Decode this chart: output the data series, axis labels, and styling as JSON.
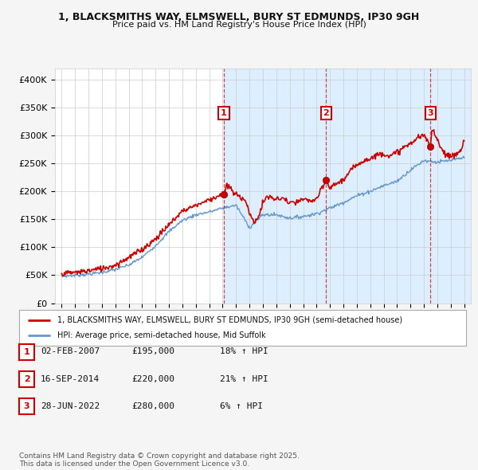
{
  "title": "1, BLACKSMITHS WAY, ELMSWELL, BURY ST EDMUNDS, IP30 9GH",
  "subtitle": "Price paid vs. HM Land Registry's House Price Index (HPI)",
  "ylim": [
    0,
    420000
  ],
  "yticks": [
    0,
    50000,
    100000,
    150000,
    200000,
    250000,
    300000,
    350000,
    400000
  ],
  "ytick_labels": [
    "£0",
    "£50K",
    "£100K",
    "£150K",
    "£200K",
    "£250K",
    "£300K",
    "£350K",
    "£400K"
  ],
  "xlim_start": 1994.5,
  "xlim_end": 2025.5,
  "sale_dates_num": [
    2007.09,
    2014.71,
    2022.49
  ],
  "sale_prices": [
    195000,
    220000,
    280000
  ],
  "sale_labels": [
    "1",
    "2",
    "3"
  ],
  "vline_color": "#cc0000",
  "property_line_color": "#cc0000",
  "hpi_line_color": "#6699cc",
  "shade_color": "#ddeeff",
  "background_color": "#f5f5f5",
  "plot_bg_color": "#ffffff",
  "legend_entry1": "1, BLACKSMITHS WAY, ELMSWELL, BURY ST EDMUNDS, IP30 9GH (semi-detached house)",
  "legend_entry2": "HPI: Average price, semi-detached house, Mid Suffolk",
  "table_data": [
    [
      "1",
      "02-FEB-2007",
      "£195,000",
      "18% ↑ HPI"
    ],
    [
      "2",
      "16-SEP-2014",
      "£220,000",
      "21% ↑ HPI"
    ],
    [
      "3",
      "28-JUN-2022",
      "£280,000",
      "6% ↑ HPI"
    ]
  ],
  "footnote": "Contains HM Land Registry data © Crown copyright and database right 2025.\nThis data is licensed under the Open Government Licence v3.0.",
  "hpi_points": [
    [
      1995,
      48000
    ],
    [
      1996,
      50000
    ],
    [
      1997,
      52000
    ],
    [
      1998,
      55000
    ],
    [
      1999,
      60000
    ],
    [
      2000,
      68000
    ],
    [
      2001,
      82000
    ],
    [
      2002,
      103000
    ],
    [
      2003,
      128000
    ],
    [
      2004,
      148000
    ],
    [
      2005,
      158000
    ],
    [
      2006,
      163000
    ],
    [
      2007,
      170000
    ],
    [
      2008,
      175000
    ],
    [
      2009,
      135000
    ],
    [
      2010,
      158000
    ],
    [
      2011,
      158000
    ],
    [
      2012,
      152000
    ],
    [
      2013,
      155000
    ],
    [
      2014,
      160000
    ],
    [
      2015,
      170000
    ],
    [
      2016,
      180000
    ],
    [
      2017,
      192000
    ],
    [
      2018,
      200000
    ],
    [
      2019,
      210000
    ],
    [
      2020,
      218000
    ],
    [
      2021,
      238000
    ],
    [
      2022,
      255000
    ],
    [
      2023,
      252000
    ],
    [
      2024,
      255000
    ],
    [
      2025,
      260000
    ]
  ],
  "prop_points": [
    [
      1995,
      53000
    ],
    [
      1996,
      55000
    ],
    [
      1997,
      58000
    ],
    [
      1998,
      62000
    ],
    [
      1999,
      68000
    ],
    [
      2000,
      82000
    ],
    [
      2001,
      96000
    ],
    [
      2002,
      115000
    ],
    [
      2003,
      140000
    ],
    [
      2004,
      165000
    ],
    [
      2005,
      175000
    ],
    [
      2006,
      185000
    ],
    [
      2007.0,
      195000
    ],
    [
      2007.09,
      195000
    ],
    [
      2007.3,
      210000
    ],
    [
      2007.6,
      205000
    ],
    [
      2007.9,
      195000
    ],
    [
      2008.3,
      190000
    ],
    [
      2008.7,
      185000
    ],
    [
      2009.0,
      160000
    ],
    [
      2009.3,
      145000
    ],
    [
      2009.7,
      155000
    ],
    [
      2010.0,
      180000
    ],
    [
      2010.3,
      190000
    ],
    [
      2010.7,
      188000
    ],
    [
      2011.0,
      185000
    ],
    [
      2011.5,
      188000
    ],
    [
      2012.0,
      178000
    ],
    [
      2012.5,
      180000
    ],
    [
      2013.0,
      185000
    ],
    [
      2013.5,
      183000
    ],
    [
      2014.0,
      185000
    ],
    [
      2014.71,
      220000
    ],
    [
      2015.0,
      205000
    ],
    [
      2015.5,
      215000
    ],
    [
      2016.0,
      220000
    ],
    [
      2016.5,
      235000
    ],
    [
      2017.0,
      248000
    ],
    [
      2017.5,
      255000
    ],
    [
      2018.0,
      258000
    ],
    [
      2018.5,
      265000
    ],
    [
      2019.0,
      268000
    ],
    [
      2019.5,
      262000
    ],
    [
      2020.0,
      270000
    ],
    [
      2020.5,
      278000
    ],
    [
      2021.0,
      285000
    ],
    [
      2021.5,
      295000
    ],
    [
      2022.0,
      300000
    ],
    [
      2022.49,
      280000
    ],
    [
      2022.6,
      310000
    ],
    [
      2022.8,
      305000
    ],
    [
      2023.0,
      295000
    ],
    [
      2023.2,
      280000
    ],
    [
      2023.5,
      270000
    ],
    [
      2023.8,
      265000
    ],
    [
      2024.0,
      260000
    ],
    [
      2024.3,
      265000
    ],
    [
      2024.6,
      270000
    ],
    [
      2024.8,
      275000
    ],
    [
      2025.0,
      290000
    ]
  ]
}
